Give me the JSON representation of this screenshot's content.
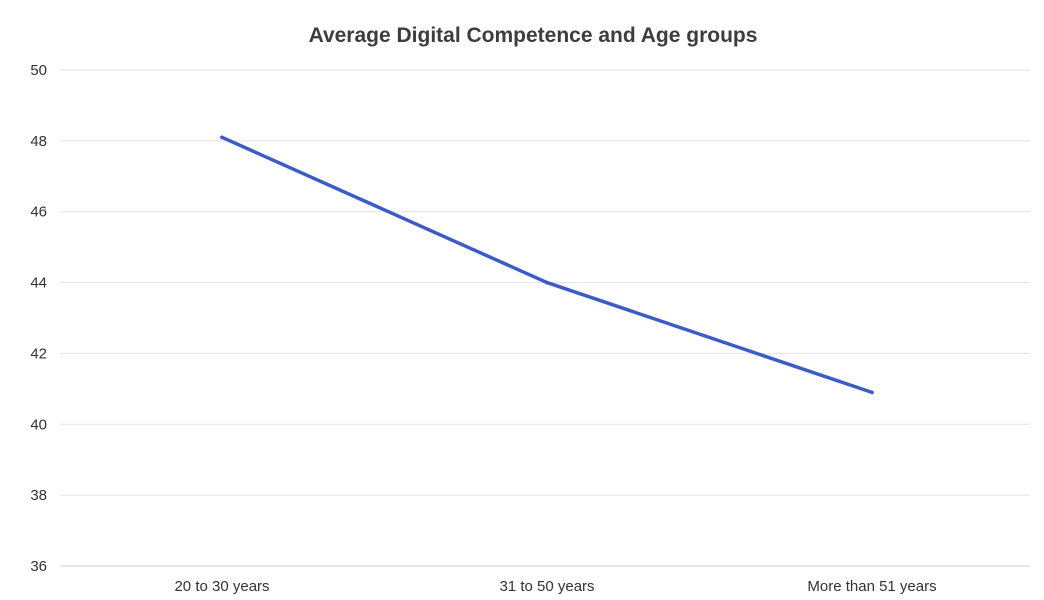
{
  "chart_data": {
    "type": "line",
    "title": "Average Digital Competence and Age groups",
    "xlabel": "",
    "ylabel": "",
    "categories": [
      "20 to 30 years",
      "31 to 50 years",
      "More than 51 years"
    ],
    "series": [
      {
        "values": [
          48.1,
          44.0,
          40.9
        ],
        "color": "#3b5cc8"
      }
    ],
    "ylim": [
      36,
      50
    ],
    "yticks": [
      36,
      38,
      40,
      42,
      44,
      46,
      48,
      50
    ],
    "grid": true,
    "legend": "none"
  }
}
